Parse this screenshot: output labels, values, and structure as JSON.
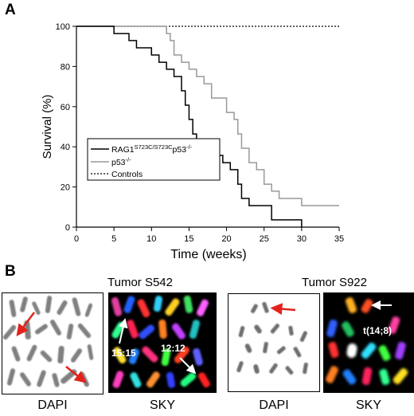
{
  "panel_a": {
    "letter": "A",
    "chart_data": {
      "type": "line",
      "xlabel": "Time (weeks)",
      "ylabel": "Survival (%)",
      "xlim": [
        0,
        35
      ],
      "ylim": [
        0,
        100
      ],
      "xticks": [
        0,
        5,
        10,
        15,
        20,
        25,
        30,
        35
      ],
      "yticks": [
        0,
        20,
        40,
        60,
        80,
        100
      ],
      "legend_position": "center-left",
      "series": [
        {
          "name": "RAG1S723C/S723Cp53-/-",
          "legend_base": "RAG1",
          "legend_sup1": "S723C/S723C",
          "legend_mid": "p53",
          "legend_sup2": "-/-",
          "color": "#000000",
          "style": "solid",
          "steps": [
            [
              0,
              100
            ],
            [
              5,
              100
            ],
            [
              5,
              96.4
            ],
            [
              7,
              96.4
            ],
            [
              7,
              92.9
            ],
            [
              8,
              92.9
            ],
            [
              8,
              89.3
            ],
            [
              10,
              89.3
            ],
            [
              10,
              85.7
            ],
            [
              11,
              85.7
            ],
            [
              11,
              82.1
            ],
            [
              12,
              82.1
            ],
            [
              12,
              78.6
            ],
            [
              13,
              78.6
            ],
            [
              13,
              75
            ],
            [
              14,
              75
            ],
            [
              14,
              67.9
            ],
            [
              14.5,
              67.9
            ],
            [
              14.5,
              60.7
            ],
            [
              15,
              60.7
            ],
            [
              15,
              53.6
            ],
            [
              15.5,
              53.6
            ],
            [
              15.5,
              46.4
            ],
            [
              16,
              46.4
            ],
            [
              16,
              42.9
            ],
            [
              17,
              42.9
            ],
            [
              17,
              39.3
            ],
            [
              18,
              39.3
            ],
            [
              18,
              35.7
            ],
            [
              19.5,
              35.7
            ],
            [
              19.5,
              32.1
            ],
            [
              20.5,
              32.1
            ],
            [
              20.5,
              28.6
            ],
            [
              21.5,
              28.6
            ],
            [
              21.5,
              21.4
            ],
            [
              22,
              21.4
            ],
            [
              22,
              14.3
            ],
            [
              23,
              14.3
            ],
            [
              23,
              10.7
            ],
            [
              26,
              10.7
            ],
            [
              26,
              3.6
            ],
            [
              30,
              3.6
            ],
            [
              30,
              0
            ]
          ]
        },
        {
          "name": "p53-/-",
          "legend_base": "p53",
          "legend_sup1": "-/-",
          "color": "#999999",
          "style": "solid",
          "steps": [
            [
              0,
              100
            ],
            [
              12,
              100
            ],
            [
              12,
              96.4
            ],
            [
              12.5,
              96.4
            ],
            [
              12.5,
              92.9
            ],
            [
              13,
              92.9
            ],
            [
              13,
              85.7
            ],
            [
              14,
              85.7
            ],
            [
              14,
              82.1
            ],
            [
              15,
              82.1
            ],
            [
              15,
              78.6
            ],
            [
              16,
              78.6
            ],
            [
              16,
              75
            ],
            [
              17,
              75
            ],
            [
              17,
              71.4
            ],
            [
              18,
              71.4
            ],
            [
              18,
              64.3
            ],
            [
              20,
              64.3
            ],
            [
              20,
              57.1
            ],
            [
              21,
              57.1
            ],
            [
              21,
              53.6
            ],
            [
              21.5,
              53.6
            ],
            [
              21.5,
              46.4
            ],
            [
              22,
              46.4
            ],
            [
              22,
              39.3
            ],
            [
              23,
              39.3
            ],
            [
              23,
              32.1
            ],
            [
              24,
              32.1
            ],
            [
              24,
              28.6
            ],
            [
              25,
              28.6
            ],
            [
              25,
              21.4
            ],
            [
              26,
              21.4
            ],
            [
              26,
              17.9
            ],
            [
              27,
              17.9
            ],
            [
              27,
              14.3
            ],
            [
              30,
              14.3
            ],
            [
              30,
              10.7
            ],
            [
              35,
              10.7
            ]
          ]
        },
        {
          "name": "Controls",
          "legend_base": "Controls",
          "color": "#000000",
          "style": "dotted",
          "steps": [
            [
              0,
              100
            ],
            [
              35,
              100
            ]
          ]
        }
      ]
    }
  },
  "panel_b": {
    "letter": "B",
    "tumor1_title": "Tumor S542",
    "tumor2_title": "Tumor S922",
    "captions": [
      "DAPI",
      "SKY",
      "DAPI",
      "SKY"
    ],
    "sky1_labels": [
      "15:15",
      "12:12"
    ],
    "sky2_label": "t(14;8)",
    "arrow_red": "#e3221b",
    "arrow_white": "#ffffff"
  }
}
